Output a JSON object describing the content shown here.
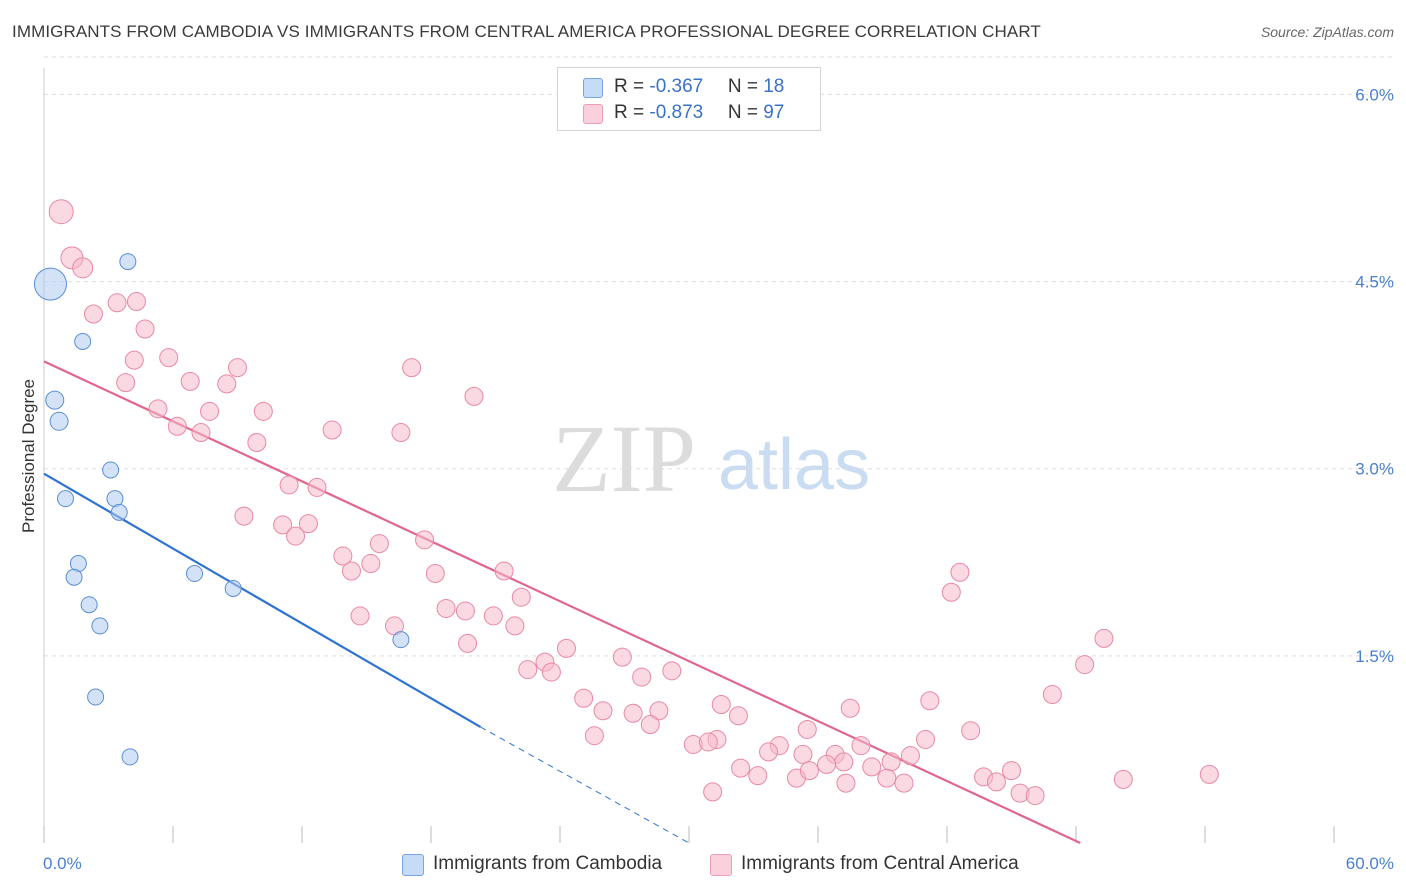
{
  "chart_data": {
    "type": "scatter",
    "title": "IMMIGRANTS FROM CAMBODIA VS IMMIGRANTS FROM CENTRAL AMERICA PROFESSIONAL DEGREE CORRELATION CHART",
    "source": "Source: ZipAtlas.com",
    "watermark": {
      "zip": "ZIP",
      "atlas": "atlas"
    },
    "xlabel": "",
    "ylabel": "Professional Degree",
    "xlim": [
      0,
      60
    ],
    "ylim": [
      0,
      6.3
    ],
    "x_tick_labels": {
      "left": "0.0%",
      "right": "60.0%"
    },
    "y_ticks": [
      {
        "value": 1.5,
        "label": "1.5%"
      },
      {
        "value": 3.0,
        "label": "3.0%"
      },
      {
        "value": 4.5,
        "label": "4.5%"
      },
      {
        "value": 6.0,
        "label": "6.0%"
      }
    ],
    "legend": [
      {
        "r_label": "R = ",
        "r_value": "-0.367",
        "n_label": "N = ",
        "n_value": "18",
        "color": "#aecbf0"
      },
      {
        "r_label": "R = ",
        "r_value": "-0.873",
        "n_label": "N = ",
        "n_value": "97",
        "color": "#f6b9cb"
      }
    ],
    "series": [
      {
        "name": "Immigrants from Cambodia",
        "color": "#aecbf0",
        "stroke": "#5a8fd6",
        "line_color": "#2e72d2",
        "trend": {
          "x0": 0,
          "y0": 2.96,
          "x1": 20.3,
          "y1": 0.93,
          "dash_to_x": 30,
          "dash_to_y": 0.0
        },
        "points": [
          [
            0.3,
            4.48,
            16
          ],
          [
            3.9,
            4.66,
            8
          ],
          [
            1.8,
            4.02,
            8
          ],
          [
            0.5,
            3.55,
            9
          ],
          [
            0.7,
            3.38,
            9
          ],
          [
            3.1,
            2.99,
            8
          ],
          [
            1.0,
            2.76,
            8
          ],
          [
            3.3,
            2.76,
            8
          ],
          [
            3.5,
            2.65,
            8
          ],
          [
            1.6,
            2.24,
            8
          ],
          [
            1.4,
            2.13,
            8
          ],
          [
            7.0,
            2.16,
            8
          ],
          [
            8.8,
            2.04,
            8
          ],
          [
            2.1,
            1.91,
            8
          ],
          [
            2.6,
            1.74,
            8
          ],
          [
            16.6,
            1.63,
            8
          ],
          [
            2.4,
            1.17,
            8
          ],
          [
            4.0,
            0.69,
            8
          ]
        ]
      },
      {
        "name": "Immigrants from Central America",
        "color": "#f6b9cb",
        "stroke": "#e889a5",
        "line_color": "#e0658f",
        "trend": {
          "x0": 0,
          "y0": 3.86,
          "x1": 48.2,
          "y1": 0.0
        },
        "points": [
          [
            0.8,
            5.06,
            12
          ],
          [
            1.3,
            4.69,
            11
          ],
          [
            1.8,
            4.61,
            10
          ],
          [
            3.4,
            4.33,
            9
          ],
          [
            2.3,
            4.24,
            9
          ],
          [
            4.3,
            4.34,
            9
          ],
          [
            4.7,
            4.12,
            9
          ],
          [
            4.2,
            3.87,
            9
          ],
          [
            5.8,
            3.89,
            9
          ],
          [
            9.0,
            3.81,
            9
          ],
          [
            17.1,
            3.81,
            9
          ],
          [
            3.8,
            3.69,
            9
          ],
          [
            6.8,
            3.7,
            9
          ],
          [
            8.5,
            3.68,
            9
          ],
          [
            20.0,
            3.58,
            9
          ],
          [
            5.3,
            3.48,
            9
          ],
          [
            7.7,
            3.46,
            9
          ],
          [
            10.2,
            3.46,
            9
          ],
          [
            6.2,
            3.34,
            9
          ],
          [
            7.3,
            3.29,
            9
          ],
          [
            13.4,
            3.31,
            9
          ],
          [
            16.6,
            3.29,
            9
          ],
          [
            9.9,
            3.21,
            9
          ],
          [
            11.4,
            2.87,
            9
          ],
          [
            12.7,
            2.85,
            9
          ],
          [
            9.3,
            2.62,
            9
          ],
          [
            11.1,
            2.55,
            9
          ],
          [
            12.3,
            2.56,
            9
          ],
          [
            11.7,
            2.46,
            9
          ],
          [
            17.7,
            2.43,
            9
          ],
          [
            15.6,
            2.4,
            9
          ],
          [
            13.9,
            2.3,
            9
          ],
          [
            15.2,
            2.24,
            9
          ],
          [
            14.3,
            2.18,
            9
          ],
          [
            18.2,
            2.16,
            9
          ],
          [
            21.4,
            2.18,
            9
          ],
          [
            42.6,
            2.17,
            9
          ],
          [
            22.2,
            1.97,
            9
          ],
          [
            42.2,
            2.01,
            9
          ],
          [
            18.7,
            1.88,
            9
          ],
          [
            19.6,
            1.86,
            9
          ],
          [
            14.7,
            1.82,
            9
          ],
          [
            20.9,
            1.82,
            9
          ],
          [
            16.3,
            1.74,
            9
          ],
          [
            21.9,
            1.74,
            9
          ],
          [
            19.7,
            1.6,
            9
          ],
          [
            49.3,
            1.64,
            9
          ],
          [
            24.3,
            1.56,
            9
          ],
          [
            26.9,
            1.49,
            9
          ],
          [
            23.3,
            1.45,
            9
          ],
          [
            48.4,
            1.43,
            9
          ],
          [
            22.5,
            1.39,
            9
          ],
          [
            23.6,
            1.37,
            9
          ],
          [
            29.2,
            1.38,
            9
          ],
          [
            27.8,
            1.33,
            9
          ],
          [
            25.1,
            1.16,
            9
          ],
          [
            46.9,
            1.19,
            9
          ],
          [
            31.5,
            1.11,
            9
          ],
          [
            37.5,
            1.08,
            9
          ],
          [
            41.2,
            1.14,
            9
          ],
          [
            26.0,
            1.06,
            9
          ],
          [
            27.4,
            1.04,
            9
          ],
          [
            28.6,
            1.06,
            9
          ],
          [
            32.3,
            1.02,
            9
          ],
          [
            28.2,
            0.95,
            9
          ],
          [
            35.5,
            0.91,
            9
          ],
          [
            43.1,
            0.9,
            9
          ],
          [
            25.6,
            0.86,
            9
          ],
          [
            31.3,
            0.83,
            9
          ],
          [
            41.0,
            0.83,
            9
          ],
          [
            30.2,
            0.79,
            9
          ],
          [
            30.9,
            0.81,
            9
          ],
          [
            34.2,
            0.78,
            9
          ],
          [
            33.7,
            0.73,
            9
          ],
          [
            35.3,
            0.71,
            9
          ],
          [
            38.0,
            0.78,
            9
          ],
          [
            36.8,
            0.71,
            9
          ],
          [
            37.2,
            0.65,
            9
          ],
          [
            36.4,
            0.63,
            9
          ],
          [
            38.5,
            0.61,
            9
          ],
          [
            39.4,
            0.65,
            9
          ],
          [
            40.3,
            0.7,
            9
          ],
          [
            32.4,
            0.6,
            9
          ],
          [
            33.2,
            0.54,
            9
          ],
          [
            35.0,
            0.52,
            9
          ],
          [
            39.2,
            0.52,
            9
          ],
          [
            40.0,
            0.48,
            9
          ],
          [
            43.7,
            0.53,
            9
          ],
          [
            44.3,
            0.49,
            9
          ],
          [
            45.0,
            0.58,
            9
          ],
          [
            45.4,
            0.4,
            9
          ],
          [
            46.1,
            0.38,
            9
          ],
          [
            50.2,
            0.51,
            9
          ],
          [
            54.2,
            0.55,
            9
          ],
          [
            31.1,
            0.41,
            9
          ],
          [
            37.3,
            0.48,
            9
          ],
          [
            35.6,
            0.58,
            9
          ]
        ]
      }
    ]
  }
}
